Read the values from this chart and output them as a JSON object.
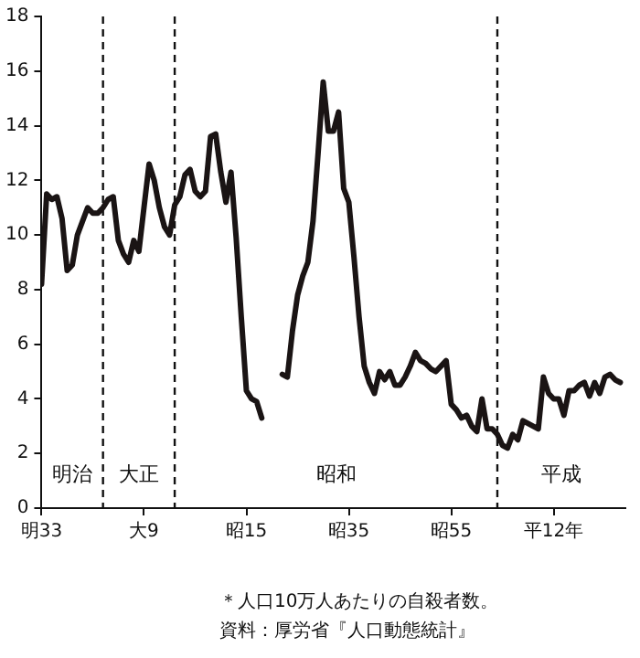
{
  "chart_data": {
    "type": "line",
    "color": "#1a1414",
    "line_style": "solid",
    "marker": "none",
    "grid": false,
    "legend": false,
    "values": [
      8.2,
      11.5,
      11.3,
      11.4,
      10.6,
      8.7,
      8.9,
      10.0,
      10.5,
      11.0,
      10.8,
      10.8,
      11.0,
      11.3,
      11.4,
      9.8,
      9.3,
      9.0,
      9.8,
      9.4,
      11.0,
      12.6,
      12.0,
      11.0,
      10.3,
      10.0,
      11.1,
      11.4,
      12.2,
      12.4,
      11.6,
      11.4,
      11.6,
      13.6,
      13.7,
      12.3,
      11.2,
      12.3,
      9.9,
      7.0,
      4.3,
      4.0,
      3.9,
      3.3,
      null,
      null,
      null,
      4.9,
      4.8,
      6.5,
      7.8,
      8.5,
      9.0,
      10.5,
      13.0,
      15.6,
      13.8,
      13.8,
      14.5,
      11.7,
      11.2,
      9.2,
      7.0,
      5.2,
      4.6,
      4.2,
      5.0,
      4.7,
      5.0,
      4.5,
      4.5,
      4.8,
      5.2,
      5.7,
      5.4,
      5.3,
      5.1,
      5.0,
      5.2,
      5.4,
      3.8,
      3.6,
      3.3,
      3.4,
      3.0,
      2.8,
      4.0,
      2.9,
      2.9,
      2.7,
      2.3,
      2.2,
      2.7,
      2.5,
      3.2,
      3.1,
      3.0,
      2.9,
      4.8,
      4.2,
      4.0,
      4.0,
      3.4,
      4.3,
      4.3,
      4.5,
      4.6,
      4.1,
      4.6,
      4.2,
      4.8,
      4.9,
      4.7,
      4.6
    ],
    "categories": [
      "明33",
      null,
      null,
      null,
      null,
      null,
      null,
      null,
      null,
      null,
      null,
      null,
      null,
      null,
      null,
      null,
      null,
      null,
      null,
      null,
      "大9",
      null,
      null,
      null,
      null,
      null,
      null,
      null,
      null,
      null,
      null,
      null,
      null,
      null,
      null,
      null,
      null,
      null,
      null,
      null,
      "昭15",
      null,
      null,
      null,
      null,
      null,
      null,
      null,
      null,
      null,
      null,
      null,
      null,
      null,
      null,
      null,
      null,
      null,
      null,
      null,
      "昭35",
      null,
      null,
      null,
      null,
      null,
      null,
      null,
      null,
      null,
      null,
      null,
      null,
      null,
      null,
      null,
      null,
      null,
      null,
      null,
      "昭55",
      null,
      null,
      null,
      null,
      null,
      null,
      null,
      null,
      null,
      null,
      null,
      null,
      null,
      null,
      null,
      null,
      null,
      null,
      null,
      "平12年",
      null,
      null,
      null,
      null,
      null,
      null,
      null,
      null,
      null,
      null,
      null,
      null,
      null
    ],
    "ylim": [
      0,
      18
    ],
    "yticks": [
      0,
      2,
      4,
      6,
      8,
      10,
      12,
      14,
      16,
      18
    ],
    "annotations": [
      "明治",
      "大正",
      "昭和",
      "平成",
      "＊人口10万人あたりの自殺者数。",
      "資料：厚労省『人口動態統計』"
    ]
  }
}
